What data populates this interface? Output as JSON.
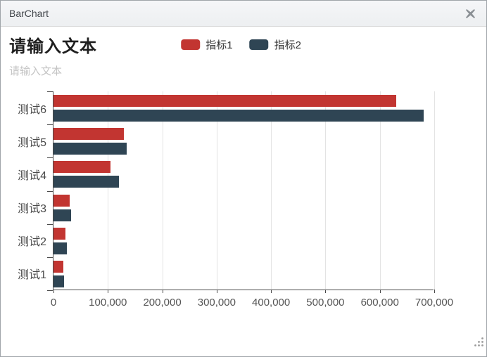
{
  "window": {
    "title": "BarChart"
  },
  "chart_data": {
    "type": "bar",
    "orientation": "horizontal",
    "title": "请输入文本",
    "subtitle": "请输入文本",
    "categories": [
      "测试1",
      "测试2",
      "测试3",
      "测试4",
      "测试5",
      "测试6"
    ],
    "categories_display_top_to_bottom": [
      "测试6",
      "测试5",
      "测试4",
      "测试3",
      "测试2",
      "测试1"
    ],
    "series": [
      {
        "name": "指标1",
        "color": "#c23531",
        "values": [
          18000,
          22000,
          30000,
          105000,
          130000,
          630000
        ]
      },
      {
        "name": "指标2",
        "color": "#2f4554",
        "values": [
          20000,
          25000,
          32000,
          120000,
          134000,
          680000
        ]
      }
    ],
    "xlim": [
      0,
      700000
    ],
    "x_ticks": [
      0,
      100000,
      200000,
      300000,
      400000,
      500000,
      600000,
      700000
    ],
    "x_tick_labels": [
      "0",
      "100,000",
      "200,000",
      "300,000",
      "400,000",
      "500,000",
      "600,000",
      "700,000"
    ],
    "grid": true,
    "legend_position": "top-center",
    "colors": {
      "grid": "#e3e3e3",
      "axis": "#4a4a4a",
      "title": "#1f1f1f",
      "subtitle": "#c4c4c4"
    }
  }
}
